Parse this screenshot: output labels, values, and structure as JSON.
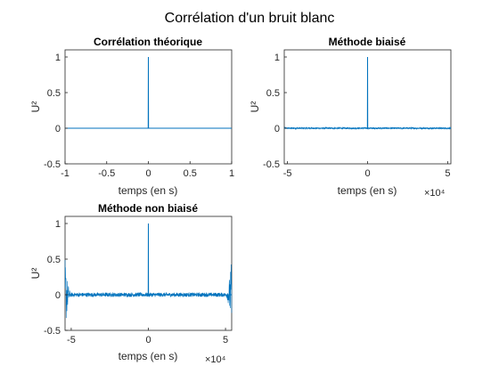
{
  "figure_title": "Corrélation d'un bruit blanc",
  "colors": {
    "line": "#0072BD",
    "axes": "#262626",
    "background": "#ffffff"
  },
  "chart_data": [
    {
      "type": "line",
      "title": "Corrélation théorique",
      "xlabel": "temps (en s)",
      "ylabel": "U²",
      "xlim": [
        -1,
        1
      ],
      "ylim": [
        -0.5,
        1.1
      ],
      "xticks": [
        -1,
        -0.5,
        0,
        0.5,
        1
      ],
      "xtick_labels": [
        "-1",
        "-0.5",
        "0",
        "0.5",
        "1"
      ],
      "yticks": [
        -0.5,
        0,
        0.5,
        1
      ],
      "ytick_labels": [
        "-0.5",
        "0",
        "0.5",
        "1"
      ],
      "exponent_label": "",
      "series": [
        {
          "x": [
            -1,
            -0.002,
            0,
            0.002,
            1
          ],
          "y": [
            0,
            0,
            1,
            0,
            0
          ]
        }
      ],
      "noise": {
        "amplitude": 0,
        "edge_amplitude": 0,
        "edge_width": 0
      }
    },
    {
      "type": "line",
      "title": "Méthode biaisé",
      "xlabel": "temps (en s)",
      "ylabel": "U²",
      "xlim": [
        -52000,
        52000
      ],
      "ylim": [
        -0.5,
        1.1
      ],
      "xticks": [
        -50000,
        0,
        50000
      ],
      "xtick_labels": [
        "-5",
        "0",
        "5"
      ],
      "yticks": [
        -0.5,
        0,
        0.5,
        1
      ],
      "ytick_labels": [
        "-0.5",
        "0",
        "0.5",
        "1"
      ],
      "exponent_label": "×10⁴",
      "series": [
        {
          "x": [
            -52000,
            -100,
            0,
            100,
            52000
          ],
          "y": [
            0,
            0,
            1,
            0,
            0
          ]
        }
      ],
      "noise": {
        "amplitude": 0.012,
        "edge_amplitude": 0,
        "edge_width": 0
      }
    },
    {
      "type": "line",
      "title": "Méthode non biaisé",
      "xlabel": "temps (en s)",
      "ylabel": "U²",
      "xlim": [
        -54000,
        54000
      ],
      "ylim": [
        -0.5,
        1.1
      ],
      "xticks": [
        -50000,
        0,
        50000
      ],
      "xtick_labels": [
        "-5",
        "0",
        "5"
      ],
      "yticks": [
        -0.5,
        0,
        0.5,
        1
      ],
      "ytick_labels": [
        "-0.5",
        "0",
        "0.5",
        "1"
      ],
      "exponent_label": "×10⁴",
      "series": [
        {
          "x": [
            -54000,
            -100,
            0,
            100,
            54000
          ],
          "y": [
            0,
            0,
            1,
            0,
            0
          ]
        }
      ],
      "noise": {
        "amplitude": 0.03,
        "edge_amplitude": 0.5,
        "edge_width": 4000
      }
    }
  ]
}
